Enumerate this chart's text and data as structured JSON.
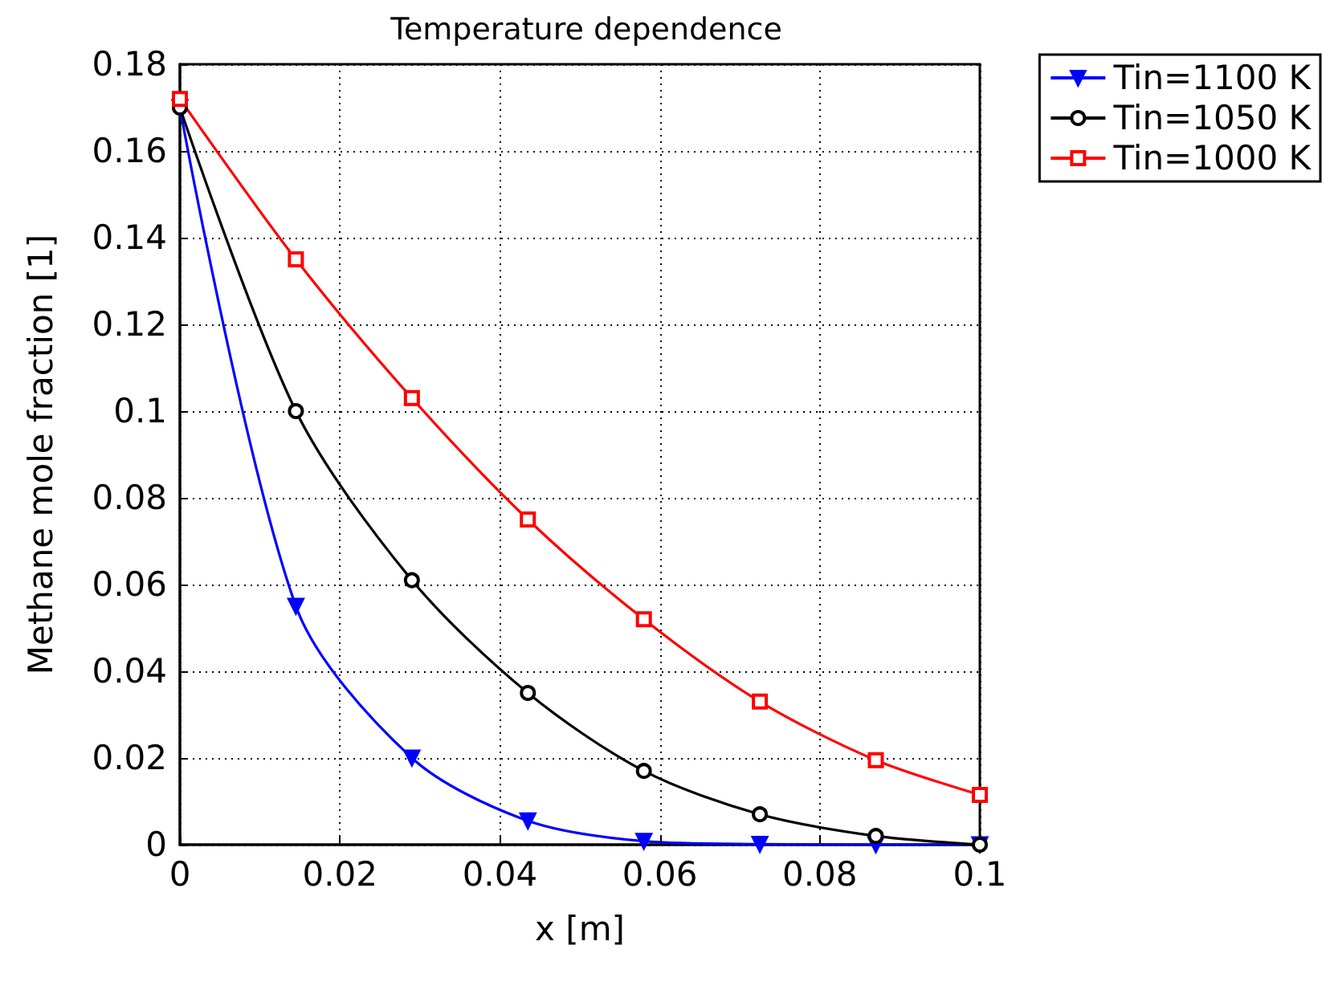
{
  "chart_data": {
    "type": "line",
    "title": "Temperature dependence",
    "xlabel": "x [m]",
    "ylabel": "Methane mole fraction [1]",
    "x": [
      0,
      0.0145,
      0.029,
      0.0435,
      0.058,
      0.0725,
      0.087,
      0.1
    ],
    "series": [
      {
        "name": "Tin=1100 K",
        "color": "#0000ff",
        "marker": "triangle",
        "values": [
          0.17,
          0.055,
          0.02,
          0.0055,
          0.0008,
          0.0001,
          0,
          0
        ]
      },
      {
        "name": "Tin=1050 K",
        "color": "#000000",
        "marker": "circle",
        "values": [
          0.17,
          0.1,
          0.061,
          0.035,
          0.017,
          0.007,
          0.002,
          0
        ]
      },
      {
        "name": "Tin=1000 K",
        "color": "#ff0000",
        "marker": "square",
        "values": [
          0.172,
          0.135,
          0.103,
          0.075,
          0.052,
          0.033,
          0.0195,
          0.0115
        ]
      }
    ],
    "xlim": [
      0,
      0.1
    ],
    "xticks": [
      0,
      0.02,
      0.04,
      0.06,
      0.08,
      0.1
    ],
    "ylim": [
      0,
      0.18
    ],
    "yticks": [
      0,
      0.02,
      0.04,
      0.06,
      0.08,
      0.1,
      0.12,
      0.14,
      0.16,
      0.18
    ],
    "grid": true,
    "legend": "top right",
    "line_style": "solid"
  }
}
